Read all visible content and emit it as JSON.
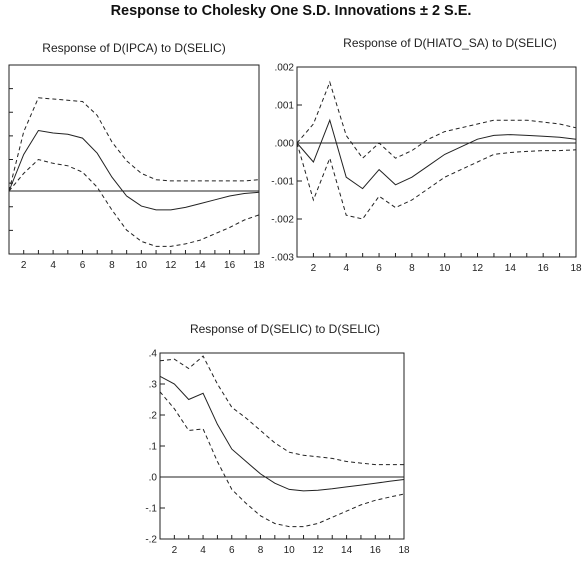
{
  "title": "Response to Cholesky One S.D. Innovations ± 2 S.E.",
  "chart_data": [
    {
      "type": "line",
      "title": "Response of D(IPCA) to D(SELIC)",
      "x": [
        1,
        2,
        3,
        4,
        5,
        6,
        7,
        8,
        9,
        10,
        11,
        12,
        13,
        14,
        15,
        16,
        17,
        18
      ],
      "xticks": [
        2,
        4,
        6,
        8,
        10,
        12,
        14,
        16,
        18
      ],
      "yticks": [],
      "ylim": [
        -0.05,
        0.1
      ],
      "series": [
        {
          "role": "response",
          "values": [
            0.0,
            0.029,
            0.048,
            0.046,
            0.045,
            0.042,
            0.03,
            0.011,
            -0.004,
            -0.012,
            -0.015,
            -0.015,
            -0.013,
            -0.01,
            -0.007,
            -0.004,
            -0.002,
            -0.001
          ]
        },
        {
          "role": "upper",
          "values": [
            0.0,
            0.047,
            0.074,
            0.073,
            0.072,
            0.071,
            0.06,
            0.039,
            0.024,
            0.014,
            0.009,
            0.008,
            0.008,
            0.008,
            0.008,
            0.008,
            0.008,
            0.009
          ]
        },
        {
          "role": "lower",
          "values": [
            0.0,
            0.014,
            0.025,
            0.022,
            0.02,
            0.015,
            0.003,
            -0.015,
            -0.031,
            -0.04,
            -0.044,
            -0.044,
            -0.042,
            -0.039,
            -0.034,
            -0.029,
            -0.023,
            -0.019
          ]
        }
      ]
    },
    {
      "type": "line",
      "title": "Response of D(HIATO_SA) to D(SELIC)",
      "x": [
        1,
        2,
        3,
        4,
        5,
        6,
        7,
        8,
        9,
        10,
        11,
        12,
        13,
        14,
        15,
        16,
        17,
        18
      ],
      "xticks": [
        2,
        4,
        6,
        8,
        10,
        12,
        14,
        16,
        18
      ],
      "yticks": [
        ".002",
        ".001",
        ".000",
        "-.001",
        "-.002",
        "-.003"
      ],
      "ylim": [
        -0.003,
        0.002
      ],
      "series": [
        {
          "role": "response",
          "values": [
            0.0,
            -0.0005,
            0.0006,
            -0.0009,
            -0.0012,
            -0.0007,
            -0.0011,
            -0.0009,
            -0.0006,
            -0.0003,
            -0.0001,
            0.0001,
            0.0002,
            0.00022,
            0.0002,
            0.00018,
            0.00015,
            0.0001
          ]
        },
        {
          "role": "upper",
          "values": [
            0.0,
            0.0005,
            0.0016,
            0.0002,
            -0.0004,
            0.0,
            -0.0004,
            -0.0002,
            0.0001,
            0.0003,
            0.0004,
            0.0005,
            0.0006,
            0.0006,
            0.0006,
            0.00055,
            0.0005,
            0.0004
          ]
        },
        {
          "role": "lower",
          "values": [
            0.0,
            -0.0015,
            -0.0004,
            -0.0019,
            -0.002,
            -0.0014,
            -0.0017,
            -0.0015,
            -0.0012,
            -0.0009,
            -0.0007,
            -0.0005,
            -0.0003,
            -0.00025,
            -0.00022,
            -0.0002,
            -0.0002,
            -0.00018
          ]
        }
      ]
    },
    {
      "type": "line",
      "title": "Response of D(SELIC) to D(SELIC)",
      "x": [
        1,
        2,
        3,
        4,
        5,
        6,
        7,
        8,
        9,
        10,
        11,
        12,
        13,
        14,
        15,
        16,
        17,
        18
      ],
      "xticks": [
        2,
        4,
        6,
        8,
        10,
        12,
        14,
        16,
        18
      ],
      "yticks": [
        ".4",
        ".3",
        ".2",
        ".1",
        ".0",
        "-.1",
        "-.2"
      ],
      "ylim": [
        -0.2,
        0.4
      ],
      "series": [
        {
          "role": "response",
          "values": [
            0.325,
            0.3,
            0.25,
            0.27,
            0.17,
            0.09,
            0.05,
            0.01,
            -0.02,
            -0.04,
            -0.045,
            -0.043,
            -0.038,
            -0.032,
            -0.026,
            -0.02,
            -0.014,
            -0.008
          ]
        },
        {
          "role": "upper",
          "values": [
            0.375,
            0.38,
            0.35,
            0.39,
            0.3,
            0.225,
            0.19,
            0.15,
            0.11,
            0.08,
            0.07,
            0.065,
            0.06,
            0.05,
            0.045,
            0.04,
            0.04,
            0.04
          ]
        },
        {
          "role": "lower",
          "values": [
            0.275,
            0.22,
            0.15,
            0.155,
            0.05,
            -0.04,
            -0.085,
            -0.125,
            -0.15,
            -0.16,
            -0.16,
            -0.15,
            -0.13,
            -0.11,
            -0.09,
            -0.075,
            -0.065,
            -0.055
          ]
        }
      ]
    }
  ]
}
